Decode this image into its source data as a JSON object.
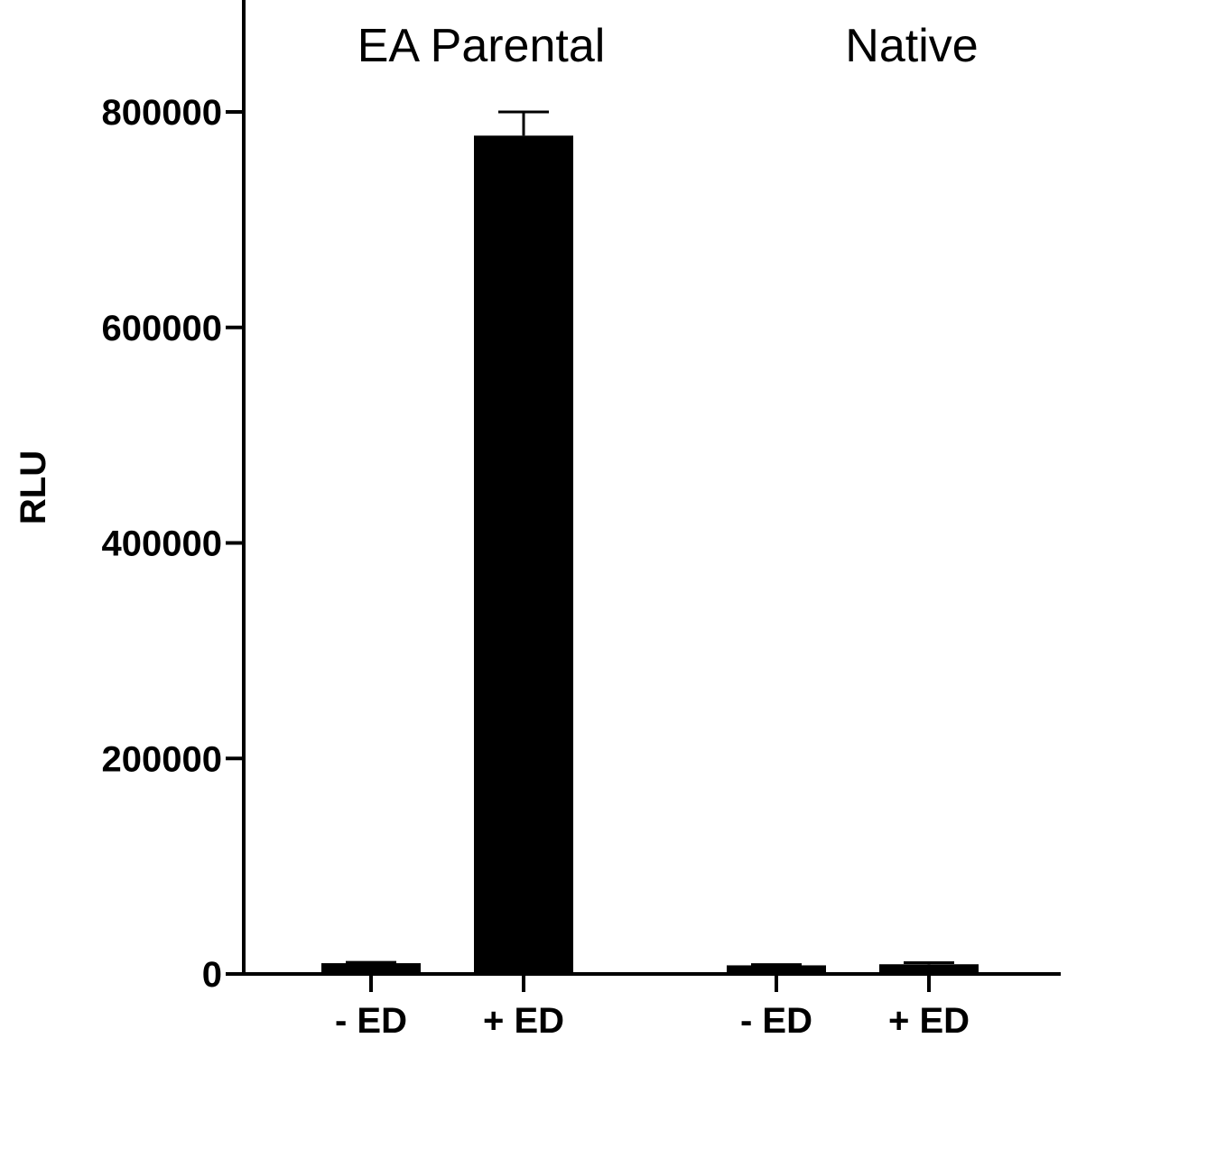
{
  "chart_data": {
    "type": "bar",
    "title": "",
    "xlabel": "",
    "ylabel": "RLU",
    "ylim": [
      0,
      900000
    ],
    "yticks": [
      0,
      200000,
      400000,
      600000,
      800000
    ],
    "ytick_labels": [
      "0",
      "200000",
      "400000",
      "600000",
      "800000"
    ],
    "grid": false,
    "legend": "none",
    "bar_color": "#000000",
    "groups": [
      {
        "name": "EA Parental",
        "bars": [
          {
            "category": "- ED",
            "value": 10000,
            "error": 800
          },
          {
            "category": "+ ED",
            "value": 778000,
            "error": 22000
          }
        ]
      },
      {
        "name": "Native",
        "bars": [
          {
            "category": "- ED",
            "value": 8000,
            "error": 700
          },
          {
            "category": "+ ED",
            "value": 9000,
            "error": 1500
          }
        ]
      }
    ]
  }
}
